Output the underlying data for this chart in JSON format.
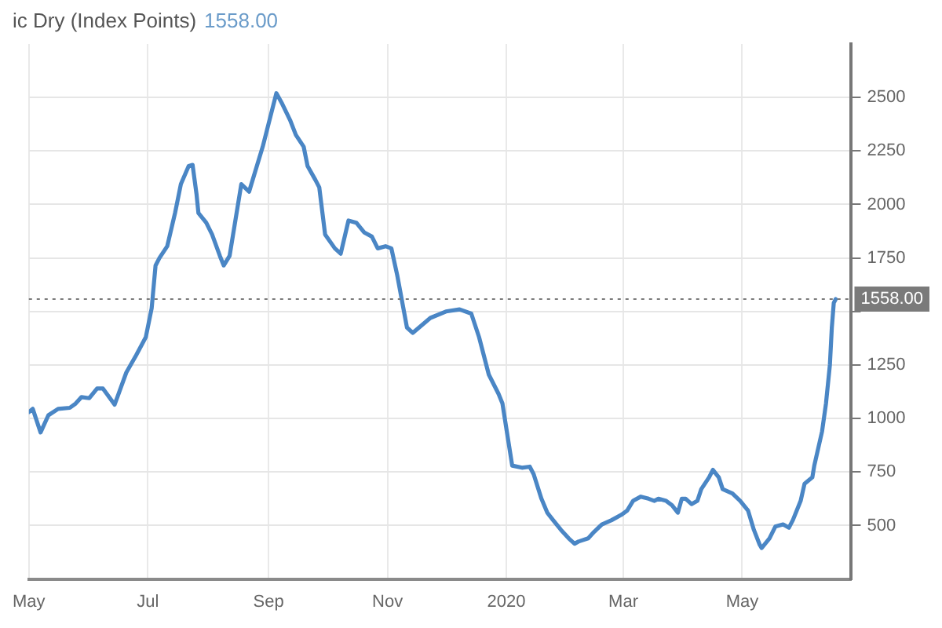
{
  "chart_data": {
    "type": "line",
    "title": "ic Dry (Index Points)",
    "subtitle": "1558.00",
    "x": [
      "2019-05-01",
      "2019-05-03",
      "2019-05-07",
      "2019-05-11",
      "2019-05-16",
      "2019-05-22",
      "2019-05-25",
      "2019-05-28",
      "2019-06-01",
      "2019-06-05",
      "2019-06-08",
      "2019-06-10",
      "2019-06-14",
      "2019-06-16",
      "2019-06-20",
      "2019-06-25",
      "2019-06-30",
      "2019-07-03",
      "2019-07-05",
      "2019-07-07",
      "2019-07-11",
      "2019-07-15",
      "2019-07-18",
      "2019-07-22",
      "2019-07-24",
      "2019-07-26",
      "2019-07-27",
      "2019-07-31",
      "2019-08-03",
      "2019-08-07",
      "2019-08-09",
      "2019-08-12",
      "2019-08-18",
      "2019-08-22",
      "2019-08-29",
      "2019-09-05",
      "2019-09-08",
      "2019-09-12",
      "2019-09-15",
      "2019-09-19",
      "2019-09-21",
      "2019-09-25",
      "2019-09-27",
      "2019-09-30",
      "2019-10-05",
      "2019-10-08",
      "2019-10-12",
      "2019-10-16",
      "2019-10-20",
      "2019-10-24",
      "2019-10-27",
      "2019-10-31",
      "2019-11-03",
      "2019-11-06",
      "2019-11-11",
      "2019-11-14",
      "2019-11-23",
      "2019-12-01",
      "2019-12-08",
      "2019-12-14",
      "2019-12-18",
      "2019-12-23",
      "2019-12-28",
      "2019-12-30",
      "2020-01-02",
      "2020-01-04",
      "2020-01-09",
      "2020-01-13",
      "2020-01-15",
      "2020-01-19",
      "2020-01-22",
      "2020-01-25",
      "2020-01-29",
      "2020-02-02",
      "2020-02-05",
      "2020-02-07",
      "2020-02-12",
      "2020-02-15",
      "2020-02-19",
      "2020-02-24",
      "2020-02-29",
      "2020-03-03",
      "2020-03-06",
      "2020-03-10",
      "2020-03-14",
      "2020-03-17",
      "2020-03-19",
      "2020-03-23",
      "2020-03-26",
      "2020-03-29",
      "2020-03-31",
      "2020-04-02",
      "2020-04-05",
      "2020-04-08",
      "2020-04-10",
      "2020-04-14",
      "2020-04-16",
      "2020-04-19",
      "2020-04-21",
      "2020-04-26",
      "2020-04-30",
      "2020-05-04",
      "2020-05-07",
      "2020-05-10",
      "2020-05-11",
      "2020-05-15",
      "2020-05-18",
      "2020-05-22",
      "2020-05-25",
      "2020-05-27",
      "2020-05-31",
      "2020-06-02",
      "2020-06-06",
      "2020-06-07",
      "2020-06-11",
      "2020-06-13",
      "2020-06-15",
      "2020-06-16",
      "2020-06-17",
      "2020-06-18"
    ],
    "series": [
      {
        "color": "#4a86c5",
        "values": [
          1030,
          1045,
          935,
          1015,
          1045,
          1050,
          1070,
          1100,
          1095,
          1140,
          1140,
          1115,
          1065,
          1115,
          1215,
          1295,
          1380,
          1515,
          1715,
          1750,
          1805,
          1960,
          2095,
          2180,
          2185,
          2050,
          1960,
          1915,
          1860,
          1760,
          1715,
          1760,
          2095,
          2060,
          2270,
          2520,
          2470,
          2395,
          2325,
          2270,
          2180,
          2115,
          2080,
          1860,
          1795,
          1770,
          1925,
          1915,
          1870,
          1850,
          1795,
          1805,
          1795,
          1670,
          1425,
          1400,
          1470,
          1500,
          1510,
          1490,
          1380,
          1205,
          1115,
          1070,
          895,
          780,
          770,
          775,
          740,
          625,
          560,
          525,
          480,
          440,
          415,
          425,
          440,
          470,
          505,
          525,
          550,
          570,
          615,
          635,
          625,
          615,
          625,
          615,
          595,
          560,
          625,
          625,
          600,
          615,
          670,
          725,
          760,
          725,
          670,
          650,
          615,
          570,
          480,
          410,
          395,
          440,
          495,
          505,
          490,
          525,
          615,
          695,
          725,
          780,
          940,
          1070,
          1250,
          1425,
          1540,
          1558
        ]
      }
    ],
    "xlim": [
      "2019-05-01",
      "2020-06-26"
    ],
    "xticks": [
      {
        "value": "2019-05-01",
        "label": "May"
      },
      {
        "value": "2019-07-01",
        "label": "Jul"
      },
      {
        "value": "2019-09-01",
        "label": "Sep"
      },
      {
        "value": "2019-11-01",
        "label": "Nov"
      },
      {
        "value": "2020-01-01",
        "label": "2020"
      },
      {
        "value": "2020-03-01",
        "label": "Mar"
      },
      {
        "value": "2020-05-01",
        "label": "May"
      }
    ],
    "ylim": [
      250,
      2750
    ],
    "yticks": [
      500,
      750,
      1000,
      1250,
      {
        "value": 1500,
        "label": null
      },
      1750,
      2000,
      2250,
      2500
    ],
    "grid": true,
    "marker": "none",
    "line_style": "solid",
    "ref_lines": [
      {
        "axis": "y",
        "value": 1558,
        "label": "1558.00",
        "color": "#7a7a7a",
        "line_style": "dotted"
      }
    ]
  }
}
